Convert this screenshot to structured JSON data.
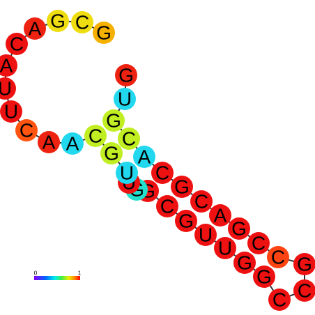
{
  "nodes": [
    {
      "label": "G",
      "color": "#ee2211"
    },
    {
      "label": "U",
      "color": "#22d8ee"
    },
    {
      "label": "G",
      "color": "#c0ee22"
    },
    {
      "label": "C",
      "color": "#c0ee22"
    },
    {
      "label": "A",
      "color": "#22d8ee"
    },
    {
      "label": "C",
      "color": "#ee1111"
    },
    {
      "label": "G",
      "color": "#ee1111"
    },
    {
      "label": "C",
      "color": "#ee1111"
    },
    {
      "label": "A",
      "color": "#ee1111"
    },
    {
      "label": "G",
      "color": "#ee1111"
    },
    {
      "label": "C",
      "color": "#ee1111"
    },
    {
      "label": "C",
      "color": "#ff4411"
    },
    {
      "label": "G",
      "color": "#ee1111"
    },
    {
      "label": "C",
      "color": "#ee1111"
    },
    {
      "label": "C",
      "color": "#ee1111"
    },
    {
      "label": "G",
      "color": "#ee1111"
    },
    {
      "label": "G",
      "color": "#ee1111"
    },
    {
      "label": "U",
      "color": "#ee1111"
    },
    {
      "label": "U",
      "color": "#ee1111"
    },
    {
      "label": "G",
      "color": "#ee1111"
    },
    {
      "label": "C",
      "color": "#ee1111"
    },
    {
      "label": "G",
      "color": "#ee1111"
    },
    {
      "label": "G",
      "color": "#22e0cc"
    },
    {
      "label": "U",
      "color": "#ee1111"
    },
    {
      "label": "U",
      "color": "#22d8ee"
    },
    {
      "label": "G",
      "color": "#c0ee22"
    },
    {
      "label": "C",
      "color": "#c0ee22"
    },
    {
      "label": "A",
      "color": "#22d8ee"
    },
    {
      "label": "A",
      "color": "#ee2211"
    },
    {
      "label": "C",
      "color": "#ff5511"
    },
    {
      "label": "U",
      "color": "#ee1111"
    },
    {
      "label": "U",
      "color": "#ee1111"
    },
    {
      "label": "A",
      "color": "#ee1111"
    },
    {
      "label": "C",
      "color": "#ee1111"
    },
    {
      "label": "A",
      "color": "#ee2211"
    },
    {
      "label": "G",
      "color": "#eedd11"
    },
    {
      "label": "C",
      "color": "#eedd11"
    },
    {
      "label": "G",
      "color": "#f5b000"
    }
  ],
  "colorbar": {
    "min_label": "0",
    "max_label": "1"
  }
}
